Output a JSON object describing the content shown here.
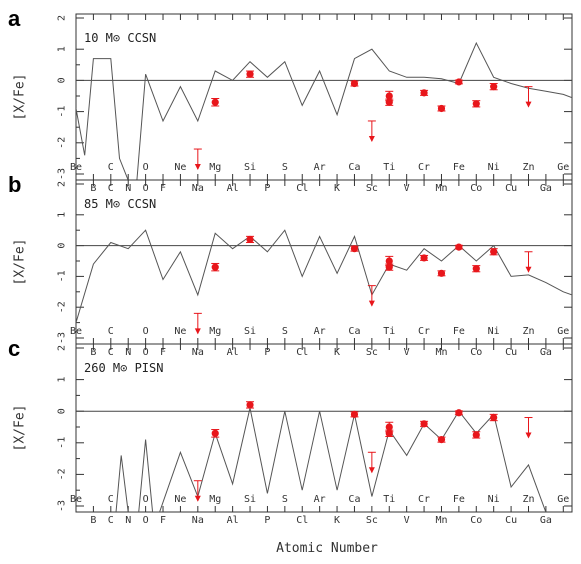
{
  "figure": {
    "xlabel": "Atomic Number",
    "ylabel": "[X/Fe]",
    "colors": {
      "model": "#555555",
      "observed": "#e8161b",
      "frame": "#333333"
    }
  },
  "chart_data": [
    {
      "type": "line",
      "panel": "a",
      "model_label": "10 M⊙ CCSN",
      "ylim": [
        -3,
        2
      ],
      "xlim": [
        4,
        32.5
      ],
      "yticks": [
        2,
        1,
        0,
        -1,
        -2,
        -3
      ],
      "upper_elements": [
        "Be",
        "C",
        "Ne",
        "Mg",
        "Si",
        "S",
        "Ar",
        "Ca",
        "Ti",
        "Cr",
        "Fe",
        "Ni",
        "Zn",
        "Ge"
      ],
      "upper_atomic_numbers": [
        4,
        6,
        10,
        12,
        14,
        16,
        18,
        20,
        22,
        24,
        26,
        28,
        30,
        32
      ],
      "lower_elements": [
        "B",
        "C",
        "N",
        "O",
        "F",
        "Na",
        "Al",
        "P",
        "Cl",
        "K",
        "Sc",
        "V",
        "Mn",
        "Co",
        "Cu",
        "Ga"
      ],
      "lower_atomic_numbers": [
        5,
        6,
        7,
        8,
        9,
        11,
        13,
        15,
        17,
        19,
        21,
        23,
        25,
        27,
        29,
        31
      ],
      "extra_upper_labels": [
        {
          "text": "O",
          "z": 8
        }
      ],
      "model": {
        "x": [
          4,
          4.5,
          5,
          6,
          6.5,
          7,
          7.5,
          8,
          9,
          10,
          11,
          12,
          13,
          14,
          15,
          16,
          17,
          18,
          19,
          20,
          21,
          22,
          23,
          24,
          25,
          26,
          27,
          28,
          29,
          30,
          31,
          32,
          32.5
        ],
        "y": [
          -0.9,
          -2.4,
          0.7,
          0.7,
          -2.5,
          -3.2,
          -3.2,
          0.2,
          -1.3,
          -0.2,
          -1.3,
          0.3,
          0.0,
          0.6,
          0.1,
          0.6,
          -0.8,
          0.3,
          -1.1,
          0.7,
          1.0,
          0.3,
          0.1,
          0.1,
          0.05,
          -0.1,
          1.2,
          0.1,
          -0.1,
          -0.25,
          -0.35,
          -0.45,
          -0.55
        ]
      },
      "observed": {
        "z": [
          12,
          14,
          20,
          22,
          22,
          24,
          25,
          26,
          27,
          28
        ],
        "y": [
          -0.7,
          0.2,
          -0.1,
          -0.5,
          -0.7,
          -0.4,
          -0.9,
          -0.05,
          -0.75,
          -0.2
        ],
        "yerr": [
          0.12,
          0.1,
          0.08,
          0.15,
          0.1,
          0.08,
          0.08,
          0.06,
          0.1,
          0.1
        ]
      },
      "upper_limits": {
        "z": [
          11,
          21,
          30
        ],
        "y": [
          -2.2,
          -1.3,
          -0.2
        ]
      }
    },
    {
      "type": "line",
      "panel": "b",
      "model_label": "85 M⊙ CCSN",
      "ylim": [
        -3,
        2
      ],
      "xlim": [
        4,
        32.5
      ],
      "yticks": [
        2,
        1,
        0,
        -1,
        -2,
        -3
      ],
      "upper_elements": [
        "Be",
        "C",
        "O",
        "Ne",
        "Mg",
        "Si",
        "S",
        "Ar",
        "Ca",
        "Ti",
        "Cr",
        "Fe",
        "Ni",
        "Zn",
        "Ge"
      ],
      "upper_atomic_numbers": [
        4,
        6,
        8,
        10,
        12,
        14,
        16,
        18,
        20,
        22,
        24,
        26,
        28,
        30,
        32
      ],
      "lower_elements": [
        "B",
        "C",
        "N",
        "O",
        "F",
        "Na",
        "Al",
        "P",
        "Cl",
        "K",
        "Sc",
        "V",
        "Mn",
        "Co",
        "Cu",
        "Ga"
      ],
      "lower_atomic_numbers": [
        5,
        6,
        7,
        8,
        9,
        11,
        13,
        15,
        17,
        19,
        21,
        23,
        25,
        27,
        29,
        31
      ],
      "extra_upper_labels": [],
      "model": {
        "x": [
          4,
          5,
          6,
          7,
          8,
          9,
          10,
          11,
          12,
          13,
          14,
          15,
          16,
          17,
          18,
          19,
          20,
          21,
          22,
          23,
          24,
          25,
          26,
          27,
          28,
          29,
          30,
          31,
          32,
          32.5
        ],
        "y": [
          -2.5,
          -0.6,
          0.1,
          -0.1,
          0.5,
          -1.1,
          -0.2,
          -1.6,
          0.4,
          -0.1,
          0.3,
          -0.2,
          0.5,
          -1.0,
          0.3,
          -0.9,
          0.3,
          -1.6,
          -0.6,
          -0.8,
          -0.1,
          -0.5,
          0.0,
          -0.5,
          0.0,
          -1.0,
          -0.95,
          -1.2,
          -1.5,
          -1.6
        ]
      },
      "observed": {
        "z": [
          12,
          14,
          20,
          22,
          22,
          24,
          25,
          26,
          27,
          28
        ],
        "y": [
          -0.7,
          0.2,
          -0.1,
          -0.5,
          -0.7,
          -0.4,
          -0.9,
          -0.05,
          -0.75,
          -0.2
        ],
        "yerr": [
          0.12,
          0.1,
          0.08,
          0.15,
          0.1,
          0.08,
          0.08,
          0.06,
          0.1,
          0.1
        ]
      },
      "upper_limits": {
        "z": [
          11,
          21,
          30
        ],
        "y": [
          -2.2,
          -1.3,
          -0.2
        ]
      }
    },
    {
      "type": "line",
      "panel": "c",
      "model_label": "260 M⊙ PISN",
      "ylim": [
        -3,
        2
      ],
      "xlim": [
        4,
        32.5
      ],
      "yticks": [
        2,
        1,
        0,
        -1,
        -2,
        -3
      ],
      "upper_elements": [
        "Be",
        "C",
        "O",
        "Ne",
        "Mg",
        "Si",
        "S",
        "Ar",
        "Ca",
        "Ti",
        "Cr",
        "Fe",
        "Ni",
        "Zn",
        "Ge"
      ],
      "upper_atomic_numbers": [
        4,
        6,
        8,
        10,
        12,
        14,
        16,
        18,
        20,
        22,
        24,
        26,
        28,
        30,
        32
      ],
      "lower_elements": [
        "B",
        "C",
        "N",
        "O",
        "F",
        "Na",
        "Al",
        "P",
        "Cl",
        "K",
        "Sc",
        "V",
        "Mn",
        "Co",
        "Cu",
        "Ga"
      ],
      "lower_atomic_numbers": [
        5,
        6,
        7,
        8,
        9,
        11,
        13,
        15,
        17,
        19,
        21,
        23,
        25,
        27,
        29,
        31
      ],
      "extra_upper_labels": [],
      "model": {
        "x": [
          6.3,
          6.6,
          7,
          7.6,
          8,
          8.4,
          8.8,
          10,
          11,
          12,
          13,
          14,
          15,
          16,
          17,
          18,
          19,
          20,
          21,
          22,
          23,
          24,
          25,
          26,
          27,
          28,
          29,
          30,
          31
        ],
        "y": [
          -3.2,
          -1.4,
          -3.2,
          -3.2,
          -0.9,
          -3.2,
          -3.2,
          -1.3,
          -2.7,
          -0.7,
          -2.3,
          0.1,
          -2.6,
          0.0,
          -2.5,
          0.0,
          -2.5,
          -0.1,
          -2.7,
          -0.6,
          -1.4,
          -0.4,
          -0.9,
          0.0,
          -0.7,
          -0.1,
          -2.4,
          -1.7,
          -3.2
        ]
      },
      "observed": {
        "z": [
          12,
          14,
          20,
          22,
          22,
          24,
          25,
          26,
          27,
          28
        ],
        "y": [
          -0.7,
          0.2,
          -0.1,
          -0.5,
          -0.7,
          -0.4,
          -0.9,
          -0.05,
          -0.75,
          -0.2
        ],
        "yerr": [
          0.12,
          0.1,
          0.08,
          0.15,
          0.1,
          0.08,
          0.08,
          0.06,
          0.1,
          0.1
        ]
      },
      "upper_limits": {
        "z": [
          11,
          21,
          30
        ],
        "y": [
          -2.2,
          -1.3,
          -0.2
        ]
      }
    }
  ]
}
